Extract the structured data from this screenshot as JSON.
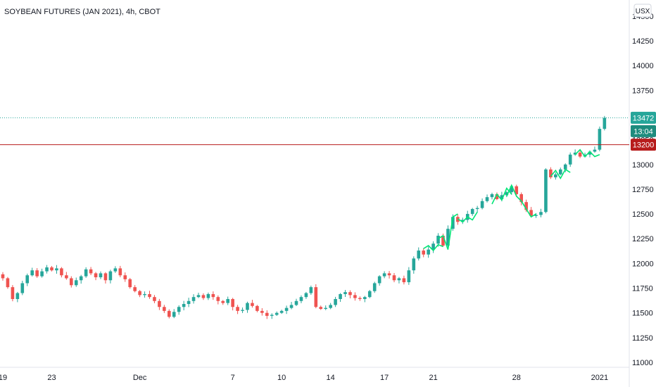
{
  "header": {
    "title": "SOYBEAN FUTURES (JAN 2021), 4h, CBOT"
  },
  "currency_button": "USX",
  "colors": {
    "up": "#26a69a",
    "down": "#ef5350",
    "resistance": "#b71c1c",
    "dotted": "#26a69a",
    "drawings": "#00e676",
    "countdown": "#1e8c7e"
  },
  "chart_data": {
    "type": "candlestick",
    "title": "SOYBEAN FUTURES (JAN 2021), 4h, CBOT",
    "symbol": "SOYBEAN FUTURES (JAN 2021)",
    "interval": "4h",
    "exchange": "CBOT",
    "currency": "USX",
    "ylim": [
      10950,
      14620
    ],
    "y_ticks": [
      11000,
      11250,
      11500,
      11750,
      12000,
      12250,
      12500,
      12750,
      13000,
      13250,
      13500,
      13750,
      14000,
      14250,
      14500
    ],
    "x_ticks": [
      "19",
      "23",
      "Dec",
      "7",
      "10",
      "14",
      "17",
      "21",
      "28",
      "2021"
    ],
    "x_tick_bar_index": [
      0,
      10,
      28,
      47,
      57,
      67,
      78,
      88,
      105,
      122
    ],
    "bars_per_day": 2.2,
    "ohlc_close_path": [
      [
        0,
        11850
      ],
      [
        1,
        11760
      ],
      [
        2,
        11640
      ],
      [
        3,
        11700
      ],
      [
        4,
        11800
      ],
      [
        5,
        11880
      ],
      [
        6,
        11930
      ],
      [
        7,
        11870
      ],
      [
        8,
        11920
      ],
      [
        9,
        11960
      ],
      [
        10,
        11930
      ],
      [
        11,
        11950
      ],
      [
        12,
        11880
      ],
      [
        13,
        11850
      ],
      [
        14,
        11780
      ],
      [
        15,
        11830
      ],
      [
        16,
        11870
      ],
      [
        17,
        11940
      ],
      [
        18,
        11900
      ],
      [
        19,
        11860
      ],
      [
        20,
        11900
      ],
      [
        21,
        11830
      ],
      [
        22,
        11920
      ],
      [
        23,
        11950
      ],
      [
        24,
        11880
      ],
      [
        25,
        11840
      ],
      [
        26,
        11760
      ],
      [
        27,
        11720
      ],
      [
        28,
        11680
      ],
      [
        29,
        11690
      ],
      [
        30,
        11660
      ],
      [
        31,
        11620
      ],
      [
        32,
        11560
      ],
      [
        33,
        11520
      ],
      [
        34,
        11460
      ],
      [
        35,
        11510
      ],
      [
        36,
        11560
      ],
      [
        37,
        11590
      ],
      [
        38,
        11620
      ],
      [
        39,
        11660
      ],
      [
        40,
        11680
      ],
      [
        41,
        11650
      ],
      [
        42,
        11690
      ],
      [
        43,
        11660
      ],
      [
        44,
        11620
      ],
      [
        45,
        11600
      ],
      [
        46,
        11640
      ],
      [
        47,
        11560
      ],
      [
        48,
        11520
      ],
      [
        49,
        11530
      ],
      [
        50,
        11600
      ],
      [
        51,
        11570
      ],
      [
        52,
        11520
      ],
      [
        53,
        11500
      ],
      [
        54,
        11470
      ],
      [
        55,
        11480
      ],
      [
        56,
        11500
      ],
      [
        57,
        11520
      ],
      [
        58,
        11550
      ],
      [
        59,
        11580
      ],
      [
        60,
        11620
      ],
      [
        61,
        11660
      ],
      [
        62,
        11700
      ],
      [
        63,
        11760
      ],
      [
        64,
        11560
      ],
      [
        65,
        11540
      ],
      [
        66,
        11550
      ],
      [
        67,
        11580
      ],
      [
        68,
        11640
      ],
      [
        69,
        11690
      ],
      [
        70,
        11710
      ],
      [
        71,
        11680
      ],
      [
        72,
        11650
      ],
      [
        73,
        11640
      ],
      [
        74,
        11660
      ],
      [
        75,
        11720
      ],
      [
        76,
        11800
      ],
      [
        77,
        11870
      ],
      [
        78,
        11900
      ],
      [
        79,
        11880
      ],
      [
        80,
        11830
      ],
      [
        81,
        11850
      ],
      [
        82,
        11810
      ],
      [
        83,
        11930
      ],
      [
        84,
        12050
      ],
      [
        85,
        12130
      ],
      [
        86,
        12090
      ],
      [
        87,
        12140
      ],
      [
        88,
        12200
      ],
      [
        89,
        12280
      ],
      [
        90,
        12180
      ],
      [
        91,
        12350
      ],
      [
        92,
        12470
      ],
      [
        93,
        12420
      ],
      [
        94,
        12440
      ],
      [
        95,
        12500
      ],
      [
        96,
        12550
      ],
      [
        97,
        12560
      ],
      [
        98,
        12630
      ],
      [
        99,
        12670
      ],
      [
        100,
        12700
      ],
      [
        101,
        12650
      ],
      [
        102,
        12690
      ],
      [
        103,
        12720
      ],
      [
        104,
        12780
      ],
      [
        105,
        12700
      ],
      [
        106,
        12620
      ],
      [
        107,
        12540
      ],
      [
        108,
        12480
      ],
      [
        109,
        12490
      ],
      [
        110,
        12520
      ],
      [
        111,
        12950
      ],
      [
        112,
        12870
      ],
      [
        113,
        12900
      ],
      [
        114,
        12950
      ],
      [
        115,
        13000
      ],
      [
        116,
        13100
      ],
      [
        117,
        13120
      ],
      [
        118,
        13080
      ],
      [
        119,
        13100
      ],
      [
        120,
        13130
      ],
      [
        121,
        13150
      ],
      [
        122,
        13360
      ],
      [
        123,
        13472
      ]
    ],
    "last_price": 13472,
    "countdown": "13:04",
    "resistance_level": 13200,
    "resistance_label": "13200",
    "last_price_label": "13472"
  }
}
